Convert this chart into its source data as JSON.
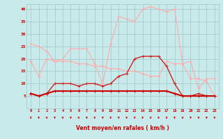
{
  "x": [
    0,
    1,
    2,
    3,
    4,
    5,
    6,
    7,
    8,
    9,
    10,
    11,
    12,
    13,
    14,
    15,
    16,
    17,
    18,
    19,
    20,
    21,
    22,
    23
  ],
  "line_light1": [
    26,
    25,
    23,
    19,
    20,
    24,
    24,
    24,
    18,
    10,
    26,
    37,
    36,
    35,
    40,
    41,
    40,
    39,
    40,
    18,
    19,
    8,
    12,
    12
  ],
  "line_light2": [
    19,
    13,
    20,
    19,
    19,
    19,
    18,
    18,
    17,
    17,
    16,
    16,
    15,
    15,
    14,
    13,
    13,
    19,
    18,
    18,
    12,
    12,
    11,
    5
  ],
  "line_dark1": [
    6,
    5,
    6,
    10,
    10,
    10,
    9,
    10,
    10,
    9,
    10,
    13,
    14,
    20,
    21,
    21,
    21,
    17,
    10,
    5,
    5,
    6,
    5,
    5
  ],
  "line_dark2": [
    6,
    5,
    6,
    7,
    7,
    7,
    7,
    7,
    7,
    7,
    7,
    7,
    7,
    7,
    7,
    7,
    7,
    7,
    6,
    5,
    5,
    5,
    5,
    5
  ],
  "xlabel": "Vent moyen/en rafales ( km/h )",
  "bg_color": "#c8eaea",
  "grid_color": "#a0c4c4",
  "c_light1": "#ffaaaa",
  "c_light2": "#ffaaaa",
  "c_dark1": "#cc2222",
  "c_dark2": "#cc0000",
  "ylim": [
    0,
    42
  ],
  "xlim": [
    -0.5,
    23.5
  ],
  "yticks": [
    5,
    10,
    15,
    20,
    25,
    30,
    35,
    40
  ],
  "xticks": [
    0,
    1,
    2,
    3,
    4,
    5,
    6,
    7,
    8,
    9,
    10,
    11,
    12,
    13,
    14,
    15,
    16,
    17,
    18,
    19,
    20,
    21,
    22,
    23
  ]
}
